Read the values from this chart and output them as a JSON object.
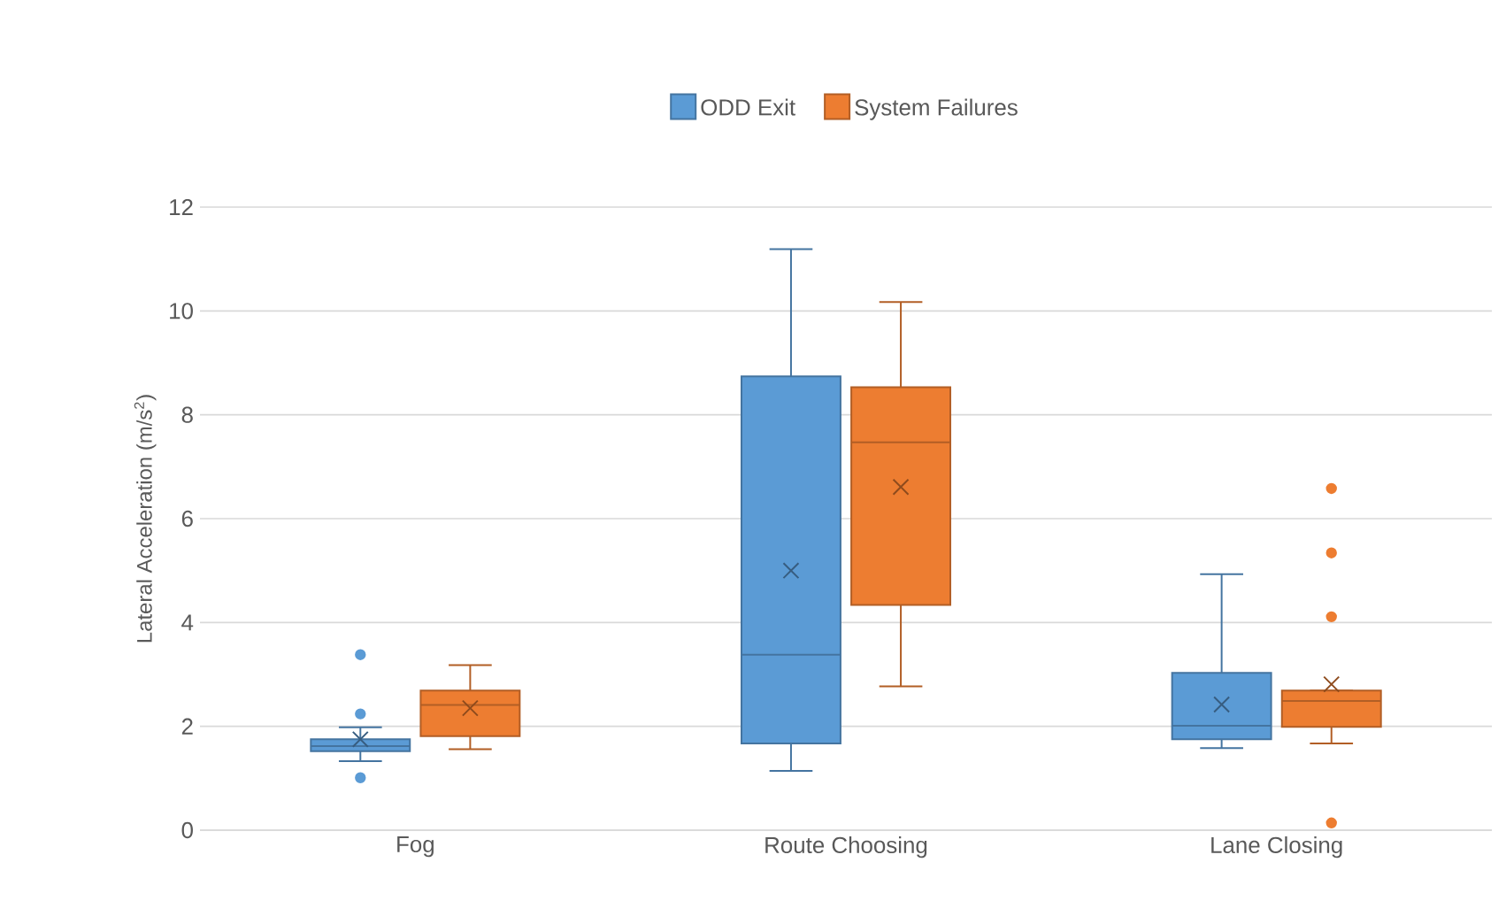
{
  "chart_data": {
    "type": "box",
    "ylabel": "Lateral Acceleration (m/s$^{2}$)",
    "categories": [
      "Fog",
      "Route Choosing",
      "Lane Closing"
    ],
    "series": [
      {
        "name": "ODD Exit",
        "color": "#5b9bd5",
        "boxes": [
          {
            "low": 1.33,
            "q1": 1.52,
            "median": 1.62,
            "q3": 1.75,
            "high": 1.98,
            "mean": 1.75,
            "outliers": [
              3.38,
              2.24,
              1.01
            ]
          },
          {
            "low": 1.14,
            "q1": 1.67,
            "median": 3.38,
            "q3": 8.74,
            "high": 11.19,
            "mean": 5.0
          },
          {
            "low": 1.58,
            "q1": 1.75,
            "median": 2.01,
            "q3": 3.03,
            "high": 4.93,
            "mean": 2.42
          }
        ]
      },
      {
        "name": "System Failures",
        "color": "#ed7d31",
        "boxes": [
          {
            "low": 1.56,
            "q1": 1.81,
            "median": 2.41,
            "q3": 2.69,
            "high": 3.18,
            "mean": 2.35
          },
          {
            "low": 2.77,
            "q1": 4.34,
            "median": 7.47,
            "q3": 8.53,
            "high": 10.17,
            "mean": 6.61
          },
          {
            "low": 1.67,
            "q1": 1.99,
            "median": 2.49,
            "q3": 2.69,
            "high": 2.69,
            "mean": 2.81,
            "outliers": [
              6.58,
              5.34,
              4.11,
              0.14
            ]
          }
        ]
      }
    ],
    "ylim": [
      0,
      12
    ],
    "yticks": [
      0,
      2,
      4,
      6,
      8,
      10,
      12
    ],
    "grid": "y",
    "legend": "top"
  }
}
